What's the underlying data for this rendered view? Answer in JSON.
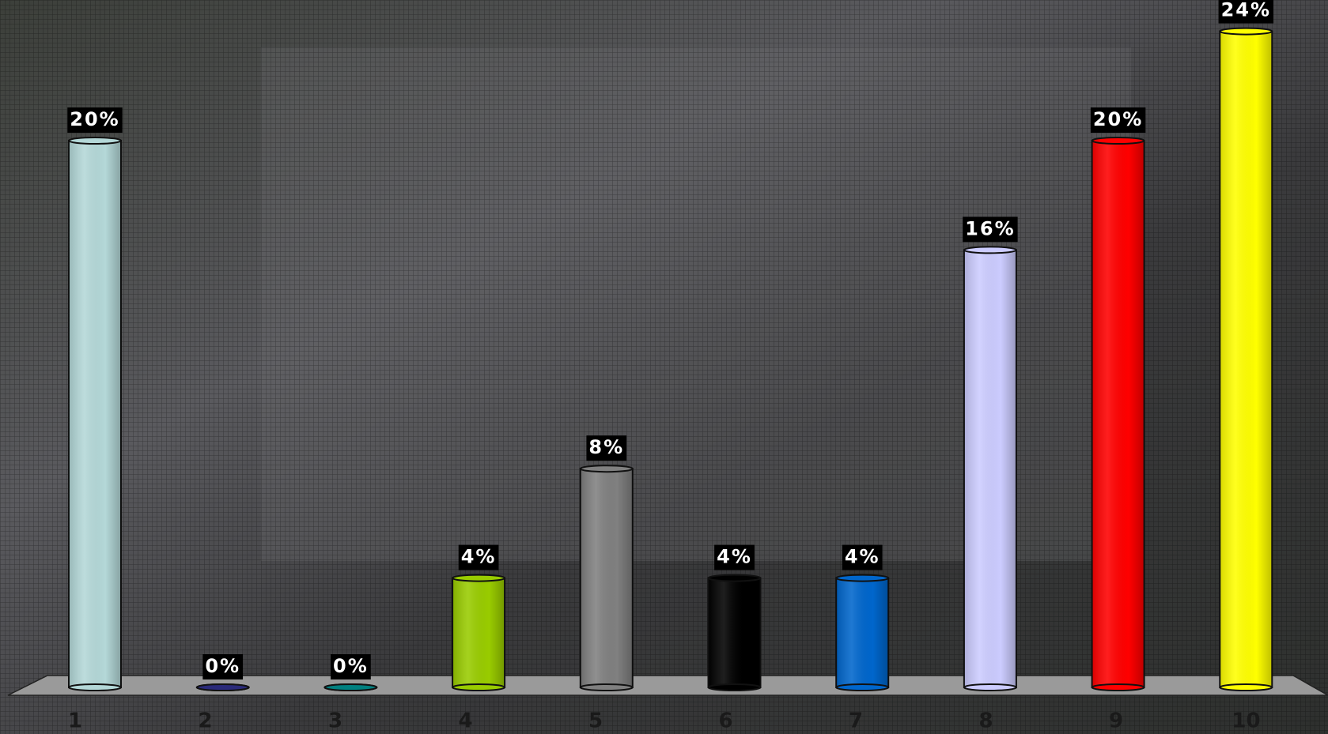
{
  "chart_data": {
    "type": "bar",
    "categories": [
      "1",
      "2",
      "3",
      "4",
      "5",
      "6",
      "7",
      "8",
      "9",
      "10"
    ],
    "values": [
      20,
      0,
      0,
      4,
      8,
      4,
      4,
      16,
      20,
      24
    ],
    "value_labels": [
      "20%",
      "0%",
      "0%",
      "4%",
      "8%",
      "4%",
      "4%",
      "16%",
      "20%",
      "24%"
    ],
    "colors": [
      "#b4d8d8",
      "#2a2a7a",
      "#008080",
      "#99cc00",
      "#808080",
      "#000000",
      "#0066cc",
      "#ccccff",
      "#ff0000",
      "#ffff00"
    ],
    "ylim": [
      0,
      25
    ]
  }
}
